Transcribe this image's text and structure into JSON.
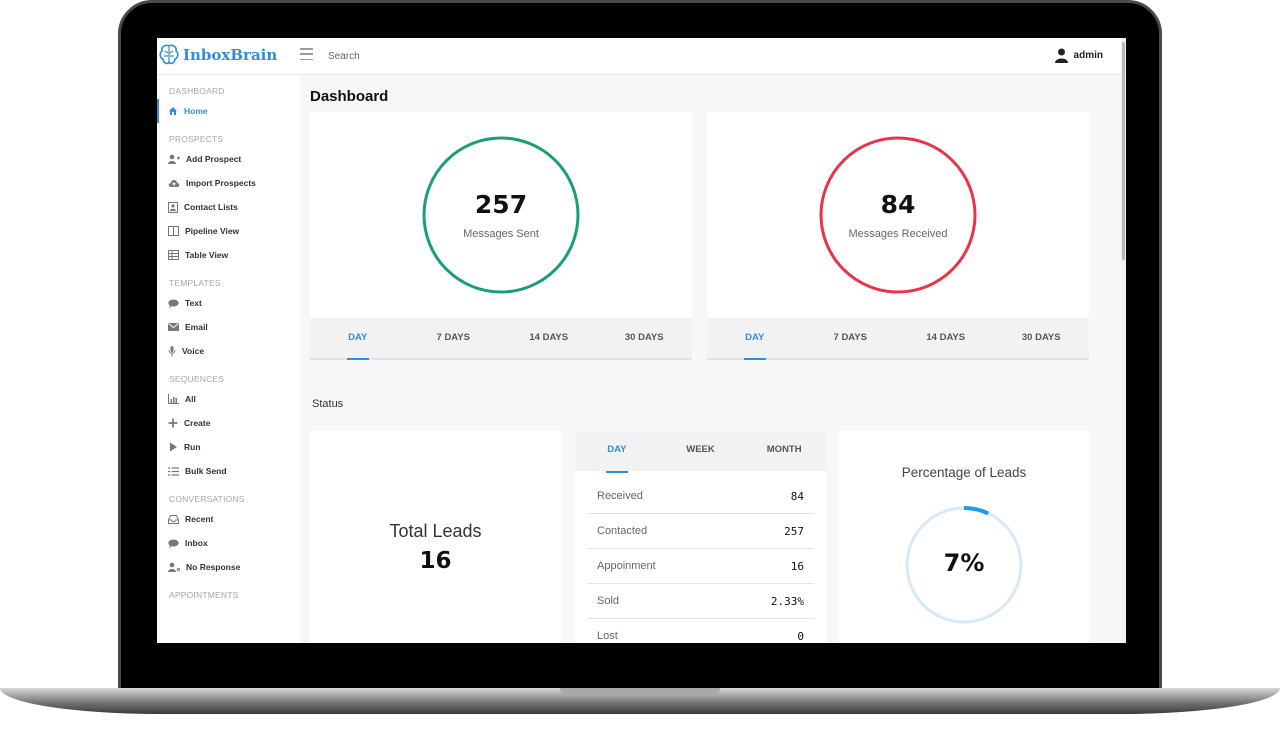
{
  "app": {
    "name": "InboxBrain"
  },
  "topbar": {
    "search_placeholder": "Search",
    "user": "admin"
  },
  "sidebar": {
    "sections": [
      {
        "title": "DASHBOARD",
        "items": [
          {
            "label": "Home",
            "icon": "home-icon",
            "active": true
          }
        ]
      },
      {
        "title": "PROSPECTS",
        "items": [
          {
            "label": "Add Prospect",
            "icon": "add-user-icon"
          },
          {
            "label": "Import Prospects",
            "icon": "cloud-upload-icon"
          },
          {
            "label": "Contact Lists",
            "icon": "contact-card-icon"
          },
          {
            "label": "Pipeline View",
            "icon": "columns-icon"
          },
          {
            "label": "Table View",
            "icon": "table-icon"
          }
        ]
      },
      {
        "title": "TEMPLATES",
        "items": [
          {
            "label": "Text",
            "icon": "chat-icon"
          },
          {
            "label": "Email",
            "icon": "envelope-icon"
          },
          {
            "label": "Voice",
            "icon": "microphone-icon"
          }
        ]
      },
      {
        "title": "SEQUENCES",
        "items": [
          {
            "label": "All",
            "icon": "bar-chart-icon"
          },
          {
            "label": "Create",
            "icon": "plus-icon"
          },
          {
            "label": "Run",
            "icon": "play-icon"
          },
          {
            "label": "Bulk Send",
            "icon": "list-icon"
          }
        ]
      },
      {
        "title": "CONVERSATIONS",
        "items": [
          {
            "label": "Recent",
            "icon": "inbox-tray-icon"
          },
          {
            "label": "Inbox",
            "icon": "chat-bubble-icon"
          },
          {
            "label": "No Response",
            "icon": "user-x-icon"
          }
        ]
      },
      {
        "title": "APPOINTMENTS",
        "items": []
      }
    ]
  },
  "main": {
    "title": "Dashboard",
    "cards": [
      {
        "value": "257",
        "label": "Messages Sent",
        "color": "#1b9e77"
      },
      {
        "value": "84",
        "label": "Messages Received",
        "color": "#e8334a"
      }
    ],
    "range_tabs": [
      "DAY",
      "7 DAYS",
      "14 DAYS",
      "30 DAYS"
    ],
    "status_label": "Status",
    "total_leads": {
      "title": "Total Leads",
      "value": "16"
    },
    "stats": {
      "tabs": [
        "DAY",
        "WEEK",
        "MONTH"
      ],
      "rows": [
        {
          "name": "Received",
          "value": "84"
        },
        {
          "name": "Contacted",
          "value": "257"
        },
        {
          "name": "Appoinment",
          "value": "16"
        },
        {
          "name": "Sold",
          "value": "2.33%"
        },
        {
          "name": "Lost",
          "value": "0"
        }
      ]
    },
    "percentage": {
      "title": "Percentage of Leads",
      "value": "7%",
      "fraction": 0.07,
      "color": "#1e9be8",
      "track_color": "#d6eaf8"
    }
  }
}
